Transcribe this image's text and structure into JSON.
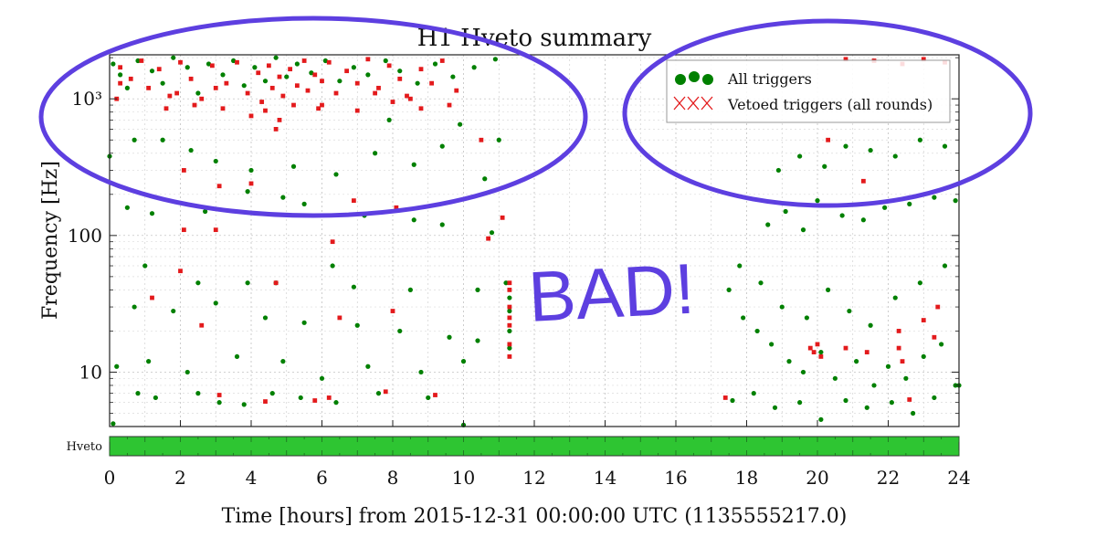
{
  "chart_data": {
    "type": "scatter",
    "title": "H1 Hveto summary",
    "xlabel": "Time [hours] from 2015-12-31 00:00:00 UTC (1135555217.0)",
    "ylabel": "Frequency [Hz]",
    "xlim": [
      0,
      24
    ],
    "ylim": [
      4,
      2100
    ],
    "yscale": "log",
    "grid": true,
    "x_ticks": [
      0,
      2,
      4,
      6,
      8,
      10,
      12,
      14,
      16,
      18,
      20,
      22,
      24
    ],
    "x_tick_labels": [
      "0",
      "2",
      "4",
      "6",
      "8",
      "10",
      "12",
      "14",
      "16",
      "18",
      "20",
      "22",
      "24"
    ],
    "y_ticks": [
      10,
      100,
      1000
    ],
    "y_tick_labels": [
      "10",
      "100",
      "10³"
    ],
    "legend": {
      "location": "top-right",
      "entries": [
        {
          "label": "All triggers",
          "color": "#008000",
          "marker": "circle"
        },
        {
          "label": "Vetoed triggers (all rounds)",
          "color": "#e31a1c",
          "marker": "x"
        }
      ]
    },
    "series": [
      {
        "name": "All triggers",
        "color": "#008000",
        "points": [
          [
            0.1,
            1800
          ],
          [
            0.3,
            1500
          ],
          [
            0.5,
            1200
          ],
          [
            0.8,
            1900
          ],
          [
            1.2,
            1600
          ],
          [
            1.5,
            1300
          ],
          [
            1.8,
            2000
          ],
          [
            2.2,
            1700
          ],
          [
            2.5,
            1100
          ],
          [
            2.8,
            1800
          ],
          [
            3.2,
            1500
          ],
          [
            3.5,
            1900
          ],
          [
            3.8,
            1250
          ],
          [
            4.1,
            1700
          ],
          [
            4.4,
            1350
          ],
          [
            4.7,
            2000
          ],
          [
            5.0,
            1450
          ],
          [
            5.3,
            1800
          ],
          [
            5.7,
            1550
          ],
          [
            6.1,
            1900
          ],
          [
            6.5,
            1350
          ],
          [
            6.9,
            1700
          ],
          [
            7.3,
            1500
          ],
          [
            7.8,
            1900
          ],
          [
            8.2,
            1600
          ],
          [
            8.7,
            1300
          ],
          [
            9.2,
            1800
          ],
          [
            9.7,
            1450
          ],
          [
            10.3,
            1700
          ],
          [
            10.9,
            1950
          ],
          [
            0.0,
            380
          ],
          [
            0.7,
            500
          ],
          [
            1.5,
            500
          ],
          [
            2.3,
            420
          ],
          [
            3.0,
            350
          ],
          [
            4.0,
            300
          ],
          [
            5.2,
            320
          ],
          [
            6.4,
            280
          ],
          [
            7.5,
            400
          ],
          [
            8.6,
            330
          ],
          [
            9.4,
            450
          ],
          [
            10.6,
            260
          ],
          [
            11.0,
            500
          ],
          [
            9.9,
            650
          ],
          [
            7.9,
            700
          ],
          [
            0.5,
            160
          ],
          [
            1.2,
            145
          ],
          [
            2.7,
            150
          ],
          [
            3.9,
            210
          ],
          [
            4.9,
            190
          ],
          [
            5.5,
            170
          ],
          [
            7.2,
            140
          ],
          [
            8.6,
            130
          ],
          [
            9.4,
            120
          ],
          [
            10.8,
            105
          ],
          [
            1.0,
            60
          ],
          [
            2.5,
            45
          ],
          [
            3.9,
            45
          ],
          [
            4.7,
            45
          ],
          [
            6.3,
            60
          ],
          [
            6.9,
            42
          ],
          [
            8.5,
            40
          ],
          [
            10.4,
            40
          ],
          [
            11.2,
            45
          ],
          [
            0.7,
            30
          ],
          [
            1.8,
            28
          ],
          [
            3.0,
            32
          ],
          [
            4.4,
            25
          ],
          [
            5.5,
            23
          ],
          [
            7.0,
            22
          ],
          [
            8.2,
            20
          ],
          [
            9.6,
            18
          ],
          [
            10.4,
            17
          ],
          [
            0.2,
            11
          ],
          [
            1.1,
            12
          ],
          [
            2.2,
            10
          ],
          [
            3.6,
            13
          ],
          [
            4.9,
            12
          ],
          [
            6.0,
            9
          ],
          [
            7.3,
            11
          ],
          [
            8.8,
            10
          ],
          [
            10.0,
            12
          ],
          [
            0.8,
            7
          ],
          [
            1.3,
            6.5
          ],
          [
            2.5,
            7
          ],
          [
            3.1,
            6
          ],
          [
            3.8,
            5.8
          ],
          [
            4.6,
            7
          ],
          [
            5.4,
            6.5
          ],
          [
            6.4,
            6
          ],
          [
            7.6,
            7
          ],
          [
            9.0,
            6.5
          ],
          [
            10.0,
            4.1
          ],
          [
            0.1,
            4.2
          ],
          [
            17.5,
            40
          ],
          [
            17.9,
            25
          ],
          [
            18.3,
            20
          ],
          [
            18.7,
            16
          ],
          [
            19.2,
            12
          ],
          [
            19.6,
            10
          ],
          [
            20.1,
            14
          ],
          [
            20.5,
            9
          ],
          [
            21.1,
            12
          ],
          [
            21.6,
            8
          ],
          [
            22.0,
            11
          ],
          [
            22.5,
            9
          ],
          [
            23.0,
            13
          ],
          [
            23.5,
            16
          ],
          [
            23.9,
            8
          ],
          [
            17.8,
            60
          ],
          [
            18.4,
            45
          ],
          [
            19.0,
            30
          ],
          [
            19.7,
            25
          ],
          [
            20.3,
            40
          ],
          [
            20.9,
            28
          ],
          [
            21.5,
            22
          ],
          [
            22.2,
            35
          ],
          [
            22.9,
            45
          ],
          [
            23.6,
            60
          ],
          [
            18.6,
            120
          ],
          [
            19.1,
            150
          ],
          [
            19.6,
            110
          ],
          [
            20.0,
            180
          ],
          [
            20.7,
            140
          ],
          [
            21.3,
            130
          ],
          [
            21.9,
            160
          ],
          [
            22.6,
            170
          ],
          [
            23.3,
            190
          ],
          [
            23.9,
            180
          ],
          [
            18.9,
            300
          ],
          [
            19.5,
            380
          ],
          [
            20.2,
            320
          ],
          [
            20.8,
            450
          ],
          [
            21.5,
            420
          ],
          [
            22.2,
            380
          ],
          [
            22.9,
            500
          ],
          [
            23.6,
            450
          ],
          [
            17.6,
            6.2
          ],
          [
            18.2,
            7
          ],
          [
            18.8,
            5.5
          ],
          [
            19.5,
            6
          ],
          [
            20.1,
            4.5
          ],
          [
            20.8,
            6.2
          ],
          [
            21.4,
            5.5
          ],
          [
            22.1,
            6
          ],
          [
            22.7,
            5
          ],
          [
            23.3,
            6.5
          ],
          [
            24.0,
            8
          ],
          [
            11.3,
            15
          ],
          [
            11.3,
            20
          ],
          [
            11.3,
            28
          ],
          [
            11.3,
            35
          ]
        ]
      },
      {
        "name": "Vetoed triggers (all rounds)",
        "color": "#e31a1c",
        "points": [
          [
            0.3,
            1700
          ],
          [
            0.6,
            1400
          ],
          [
            0.9,
            1900
          ],
          [
            1.1,
            1200
          ],
          [
            1.4,
            1650
          ],
          [
            1.7,
            1050
          ],
          [
            2.0,
            1850
          ],
          [
            2.3,
            1400
          ],
          [
            2.6,
            1000
          ],
          [
            2.9,
            1750
          ],
          [
            3.3,
            1300
          ],
          [
            3.6,
            1850
          ],
          [
            3.9,
            1100
          ],
          [
            4.2,
            1550
          ],
          [
            4.3,
            950
          ],
          [
            4.5,
            1750
          ],
          [
            4.6,
            1200
          ],
          [
            4.8,
            1450
          ],
          [
            4.9,
            1050
          ],
          [
            5.1,
            1650
          ],
          [
            5.3,
            1250
          ],
          [
            5.5,
            1900
          ],
          [
            5.6,
            1150
          ],
          [
            5.8,
            1500
          ],
          [
            6.0,
            1350
          ],
          [
            6.2,
            1850
          ],
          [
            6.4,
            1100
          ],
          [
            6.7,
            1600
          ],
          [
            7.0,
            1300
          ],
          [
            7.3,
            1950
          ],
          [
            7.6,
            1200
          ],
          [
            7.9,
            1750
          ],
          [
            8.2,
            1400
          ],
          [
            8.5,
            1000
          ],
          [
            8.8,
            1650
          ],
          [
            9.1,
            1300
          ],
          [
            9.4,
            1900
          ],
          [
            9.8,
            1150
          ],
          [
            0.2,
            1000
          ],
          [
            1.6,
            850
          ],
          [
            2.4,
            900
          ],
          [
            3.2,
            850
          ],
          [
            4.0,
            750
          ],
          [
            4.4,
            820
          ],
          [
            4.8,
            700
          ],
          [
            5.2,
            900
          ],
          [
            6.0,
            900
          ],
          [
            7.0,
            820
          ],
          [
            8.0,
            950
          ],
          [
            8.8,
            850
          ],
          [
            9.6,
            900
          ],
          [
            0.3,
            1300
          ],
          [
            1.9,
            1100
          ],
          [
            3.0,
            1200
          ],
          [
            4.7,
            600
          ],
          [
            5.9,
            850
          ],
          [
            7.5,
            1100
          ],
          [
            8.4,
            1050
          ],
          [
            2.1,
            300
          ],
          [
            3.1,
            230
          ],
          [
            4.0,
            240
          ],
          [
            6.9,
            180
          ],
          [
            8.1,
            160
          ],
          [
            10.5,
            500
          ],
          [
            11.1,
            135
          ],
          [
            2.1,
            110
          ],
          [
            3.0,
            110
          ],
          [
            6.3,
            90
          ],
          [
            10.7,
            95
          ],
          [
            2.0,
            55
          ],
          [
            1.2,
            35
          ],
          [
            2.6,
            22
          ],
          [
            4.7,
            45
          ],
          [
            6.5,
            25
          ],
          [
            8.0,
            28
          ],
          [
            11.3,
            16
          ],
          [
            11.3,
            22
          ],
          [
            11.3,
            30
          ],
          [
            11.3,
            40
          ],
          [
            11.3,
            13
          ],
          [
            11.3,
            25
          ],
          [
            11.3,
            45
          ],
          [
            3.1,
            6.8
          ],
          [
            5.8,
            6.2
          ],
          [
            6.2,
            6.5
          ],
          [
            4.4,
            6.1
          ],
          [
            7.8,
            7.2
          ],
          [
            9.2,
            6.8
          ],
          [
            17.4,
            6.5
          ],
          [
            19.8,
            15
          ],
          [
            19.9,
            14
          ],
          [
            20.0,
            16
          ],
          [
            20.1,
            13
          ],
          [
            20.8,
            15
          ],
          [
            21.4,
            14
          ],
          [
            22.3,
            15
          ],
          [
            22.3,
            20
          ],
          [
            22.4,
            12
          ],
          [
            22.6,
            6.3
          ],
          [
            23.0,
            24
          ],
          [
            23.3,
            18
          ],
          [
            23.4,
            30
          ],
          [
            20.8,
            1950
          ],
          [
            21.6,
            1900
          ],
          [
            22.4,
            1800
          ],
          [
            23.0,
            1950
          ],
          [
            23.6,
            1850
          ],
          [
            20.3,
            500
          ],
          [
            21.3,
            250
          ]
        ]
      }
    ],
    "segments": {
      "label": "Hveto",
      "range": [
        0,
        24
      ],
      "color": "#2ec532"
    },
    "annotations": [
      {
        "type": "handwritten-text",
        "text": "BAD!",
        "color": "#5d3fe0"
      },
      {
        "type": "ellipse",
        "color": "#5d3fe0",
        "target": "dense trigger cluster, hours 0-11, above ~200 Hz"
      },
      {
        "type": "ellipse",
        "color": "#5d3fe0",
        "target": "legend"
      }
    ]
  }
}
